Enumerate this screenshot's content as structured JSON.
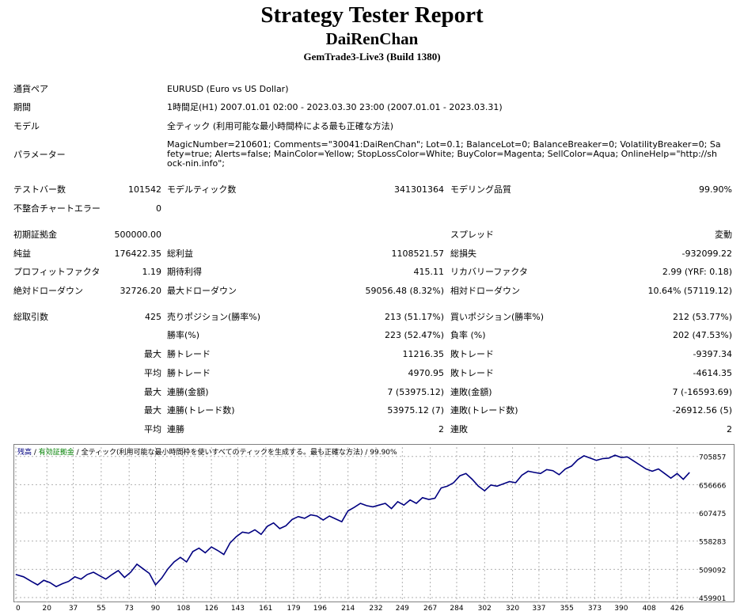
{
  "report": {
    "title": "Strategy Tester Report",
    "expert": "DaiRenChan",
    "server": "GemTrade3-Live3 (Build 1380)"
  },
  "settings": {
    "symbol_label": "通貨ペア",
    "symbol_value": "EURUSD (Euro vs US Dollar)",
    "period_label": "期間",
    "period_value": "1時間足(H1) 2007.01.01 02:00 - 2023.03.30 23:00 (2007.01.01 - 2023.03.31)",
    "model_label": "モデル",
    "model_value": "全ティック (利用可能な最小時間枠による最も正確な方法)",
    "params_label": "パラメーター",
    "params_value": "MagicNumber=210601; Comments=\"30041:DaiRenChan\"; Lot=0.1; BalanceLot=0; BalanceBreaker=0; VolatilityBreaker=0; Safety=true; Alerts=false; MainColor=Yellow; StopLossColor=White; BuyColor=Magenta; SellColor=Aqua; OnlineHelp=\"http://shock-nin.info\";"
  },
  "stats": {
    "bars_label": "テストバー数",
    "bars": "101542",
    "ticks_label": "モデルティック数",
    "ticks": "341301364",
    "quality_label": "モデリング品質",
    "quality": "99.90%",
    "mismatch_label": "不整合チャートエラー",
    "mismatch": "0",
    "deposit_label": "初期証拠金",
    "deposit": "500000.00",
    "spread_label": "スプレッド",
    "spread": "変動",
    "net_label": "純益",
    "net": "176422.35",
    "gross_profit_label": "総利益",
    "gross_profit": "1108521.57",
    "gross_loss_label": "総損失",
    "gross_loss": "-932099.22",
    "pf_label": "プロフィットファクタ",
    "pf": "1.19",
    "expected_label": "期待利得",
    "expected": "415.11",
    "recovery_label": "リカバリーファクタ",
    "recovery": "2.99 (YRF: 0.18)",
    "abs_dd_label": "絶対ドローダウン",
    "abs_dd": "32726.20",
    "max_dd_label": "最大ドローダウン",
    "max_dd": "59056.48 (8.32%)",
    "rel_dd_label": "相対ドローダウン",
    "rel_dd": "10.64% (57119.12)",
    "trades_label": "総取引数",
    "trades": "425",
    "short_label": "売りポジション(勝率%)",
    "short": "213 (51.17%)",
    "long_label": "買いポジション(勝率%)",
    "long": "212 (53.77%)",
    "win_pct_label": "勝率(%)",
    "win_pct": "223 (52.47%)",
    "loss_pct_label": "負率 (%)",
    "loss_pct": "202 (47.53%)",
    "max_word": "最大",
    "avg_word": "平均",
    "largest_win_label": "勝トレード",
    "largest_win": "11216.35",
    "largest_loss_label": "敗トレード",
    "largest_loss": "-9397.34",
    "avg_win_label": "勝トレード",
    "avg_win": "4970.95",
    "avg_loss_label": "敗トレード",
    "avg_loss": "-4614.35",
    "cons_win_money_label": "連勝(金額)",
    "cons_win_money": "7 (53975.12)",
    "cons_loss_money_label": "連敗(金額)",
    "cons_loss_money": "7 (-16593.69)",
    "cons_win_count_label": "連勝(トレード数)",
    "cons_win_count": "53975.12 (7)",
    "cons_loss_count_label": "連敗(トレード数)",
    "cons_loss_count": "-26912.56 (5)",
    "avg_cons_win_label": "連勝",
    "avg_cons_win": "2",
    "avg_cons_loss_label": "連敗",
    "avg_cons_loss": "2"
  },
  "chart_data": {
    "type": "line",
    "legend_balance": "残高",
    "legend_sep1": " / ",
    "legend_margin": "有効証拠金",
    "legend_sep2": " / ",
    "legend_rest": "全ティック(利用可能な最小時間枠を使いすべてのティックを生成する。最も正確な方法) / 99.90%",
    "balance_color": "#000080",
    "margin_color": "#008000",
    "ylim": [
      459901,
      722000
    ],
    "y_ticks": [
      "705857",
      "656666",
      "607475",
      "558283",
      "509092",
      "459901"
    ],
    "x_ticks": [
      "0",
      "20",
      "37",
      "55",
      "73",
      "90",
      "108",
      "126",
      "143",
      "161",
      "179",
      "196",
      "214",
      "232",
      "249",
      "267",
      "284",
      "302",
      "320",
      "337",
      "355",
      "373",
      "390",
      "408",
      "426"
    ],
    "xlim": [
      0,
      438
    ],
    "series": [
      {
        "x": [
          0,
          5,
          10,
          14,
          18,
          22,
          26,
          30,
          34,
          38,
          42,
          46,
          50,
          54,
          58,
          62,
          66,
          70,
          74,
          78,
          82,
          86,
          90,
          94,
          98,
          102,
          106,
          110,
          114,
          118,
          122,
          126,
          130,
          134,
          138,
          142,
          146,
          150,
          154,
          158,
          162,
          166,
          170,
          174,
          178,
          182,
          186,
          190,
          194,
          198,
          202,
          206,
          210,
          214,
          218,
          222,
          226,
          230,
          234,
          238,
          242,
          246,
          250,
          254,
          258,
          262,
          266,
          270,
          274,
          278,
          282,
          286,
          290,
          294,
          298,
          302,
          306,
          310,
          314,
          318,
          322,
          326,
          330,
          334,
          338,
          342,
          346,
          350,
          354,
          358,
          362,
          366,
          370,
          374,
          378,
          382,
          386,
          390,
          394,
          398,
          402,
          406,
          410,
          414,
          418,
          422,
          426,
          430,
          434
        ],
        "values": [
          500000,
          496000,
          488000,
          482000,
          490000,
          486000,
          479000,
          484000,
          488000,
          496000,
          492000,
          500000,
          504000,
          498000,
          492000,
          500000,
          507000,
          495000,
          504000,
          518000,
          510000,
          502000,
          482000,
          494000,
          510000,
          522000,
          530000,
          522000,
          540000,
          546000,
          538000,
          548000,
          542000,
          535000,
          555000,
          566000,
          574000,
          572000,
          578000,
          570000,
          584000,
          590000,
          580000,
          585000,
          596000,
          601000,
          598000,
          604000,
          602000,
          595000,
          602000,
          597000,
          592000,
          611000,
          617000,
          624000,
          620000,
          618000,
          621000,
          624000,
          615000,
          627000,
          621000,
          630000,
          624000,
          634000,
          631000,
          633000,
          651000,
          654000,
          660000,
          672000,
          676000,
          666000,
          654000,
          646000,
          656000,
          654000,
          658000,
          662000,
          660000,
          673000,
          680000,
          678000,
          676000,
          683000,
          681000,
          674000,
          684000,
          689000,
          700000,
          707000,
          703000,
          699000,
          702000,
          703000,
          708000,
          704000,
          705000,
          698000,
          691000,
          684000,
          680000,
          684000,
          676000,
          668000,
          676000,
          666000,
          678000
        ]
      }
    ]
  }
}
